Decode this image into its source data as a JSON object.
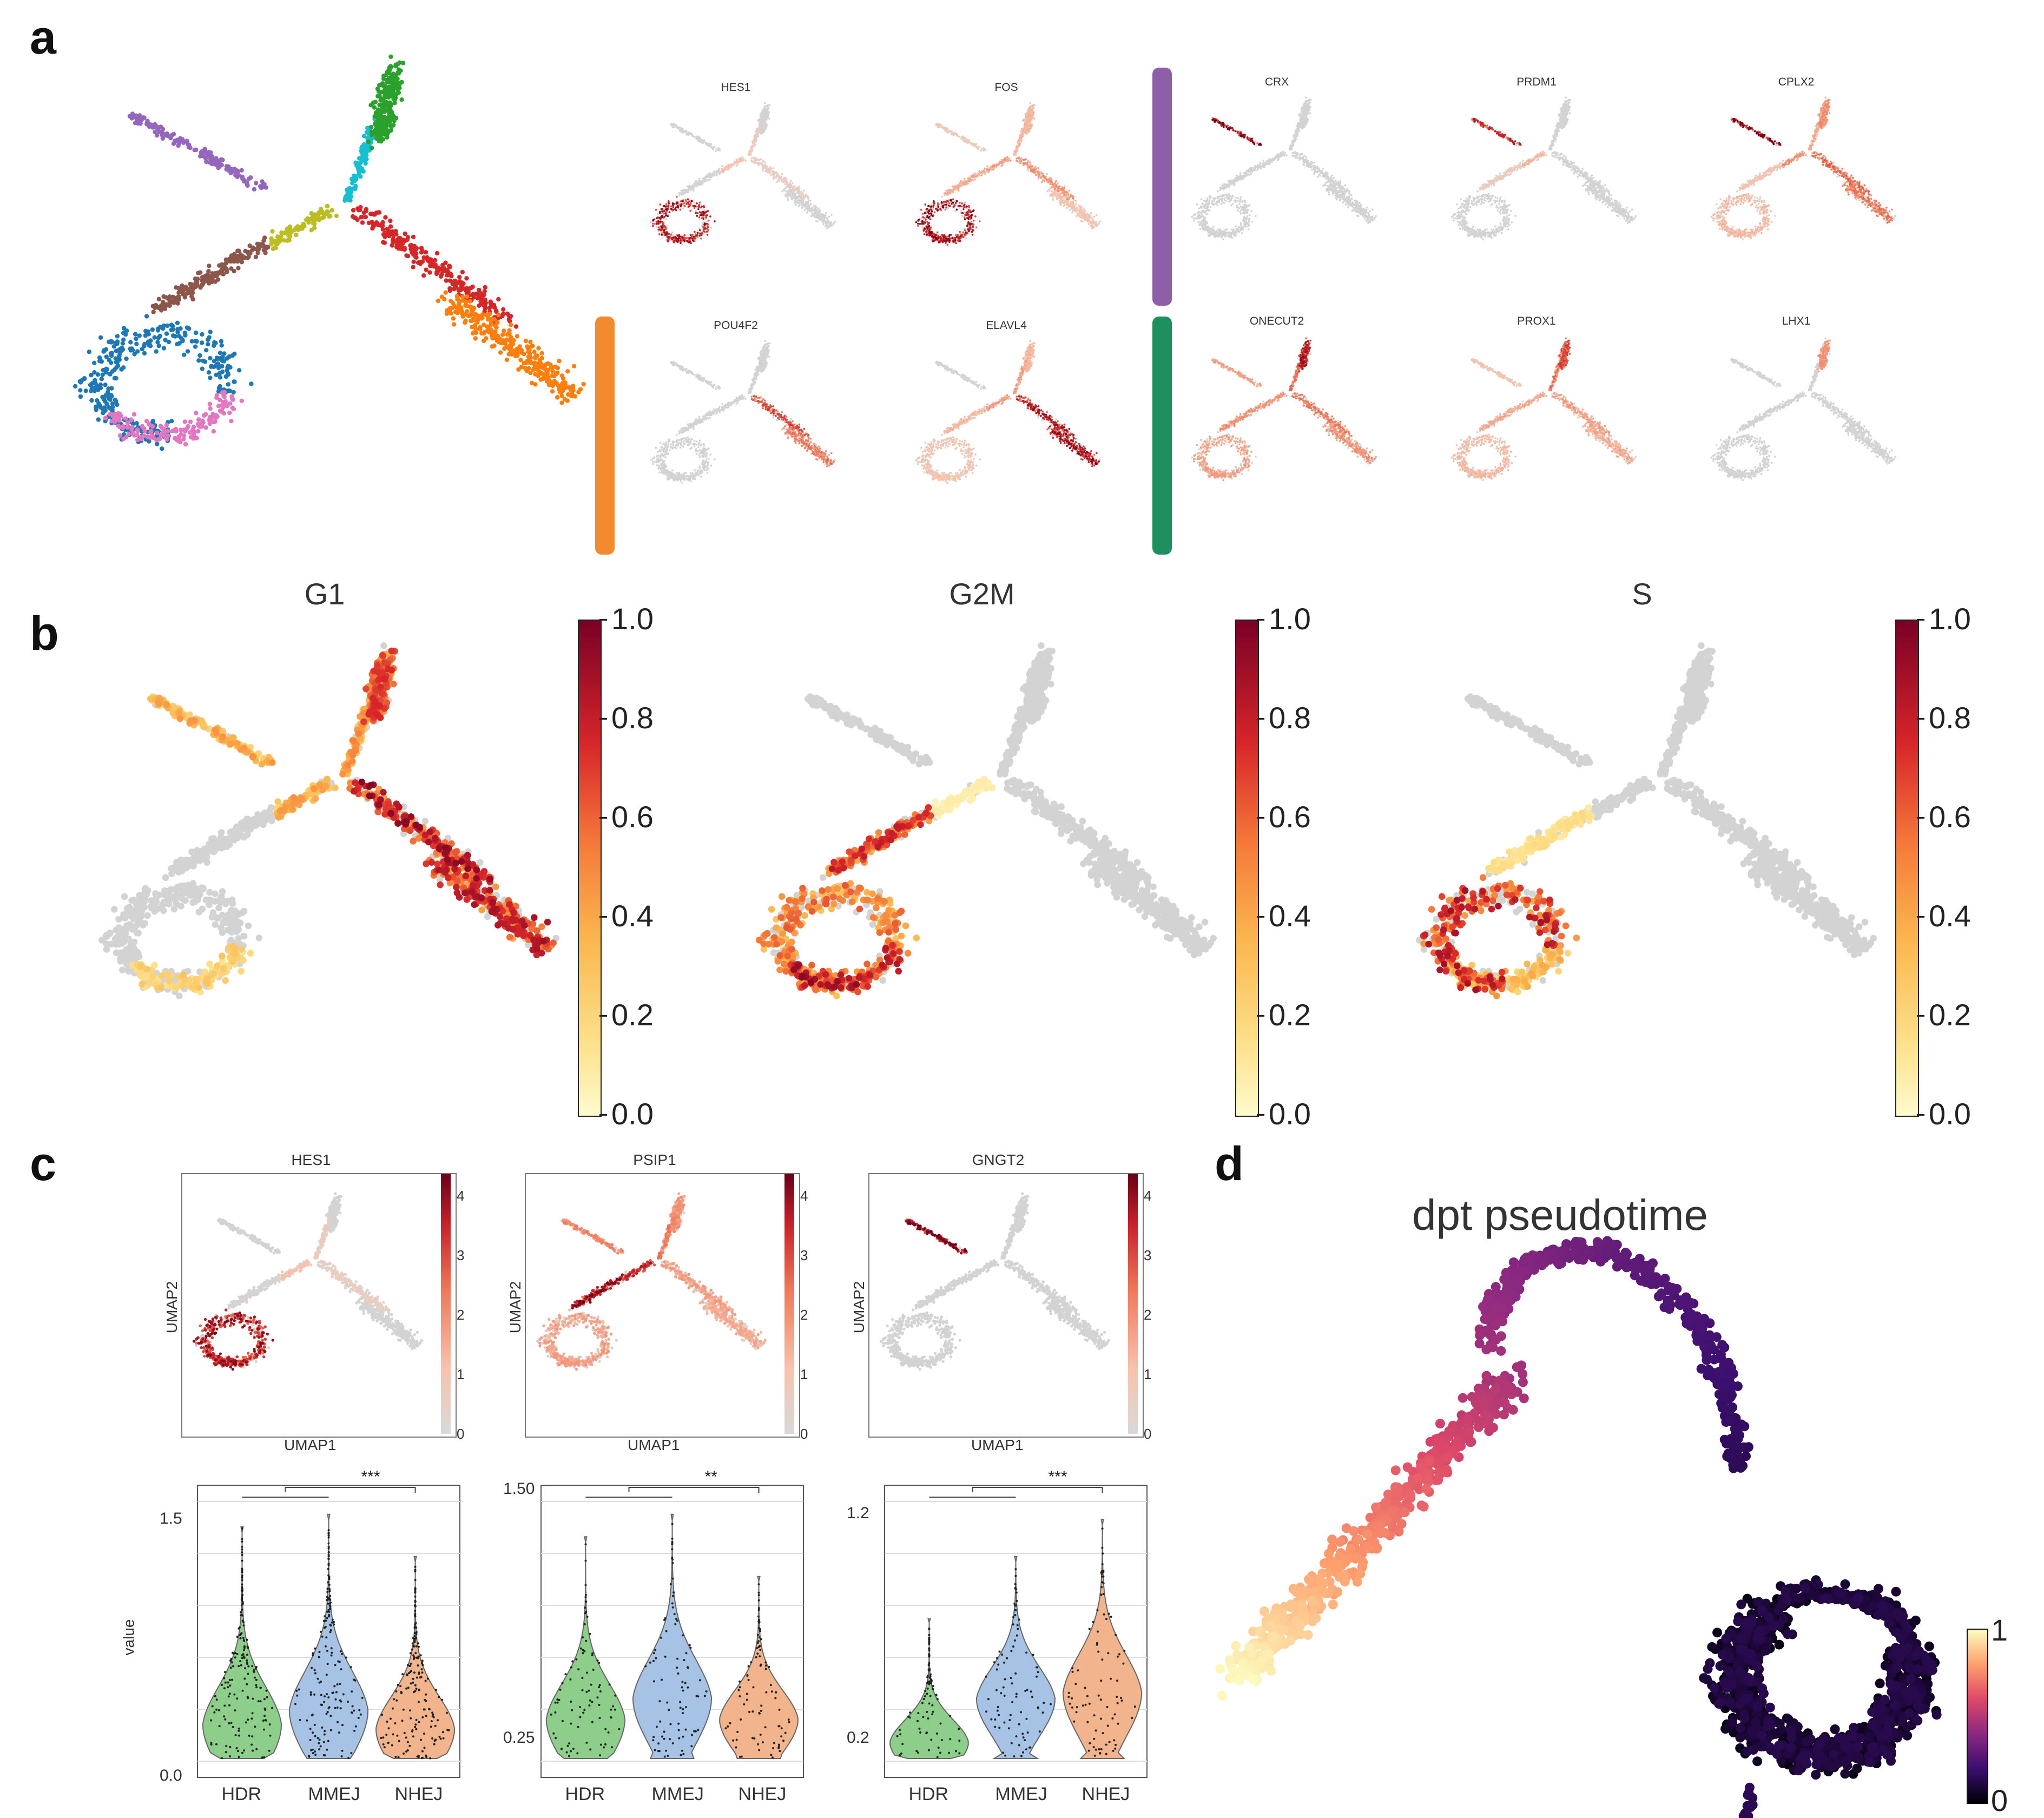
{
  "panels": {
    "a": "a",
    "b": "b",
    "c": "c",
    "d": "d"
  },
  "panel_a": {
    "genes_row1": [
      "HES1",
      "FOS",
      "CRX",
      "PRDM1",
      "CPLX2"
    ],
    "genes_row2": [
      "POU4F2",
      "ELAVL4",
      "ONECUT2",
      "PROX1",
      "LHX1"
    ],
    "cluster_colors": [
      "#1f77b4",
      "#e377c2",
      "#8c564b",
      "#bcbd22",
      "#9467bd",
      "#17becf",
      "#2ca02c",
      "#d62728",
      "#ff7f0e"
    ],
    "bar_colors": {
      "purple": "#8c5fa8",
      "orange": "#f28a30",
      "green": "#1e8f5e"
    }
  },
  "panel_b": {
    "titles": [
      "G1",
      "G2M",
      "S"
    ],
    "colorbar_ticks": [
      "1.0",
      "0.8",
      "0.6",
      "0.4",
      "0.2",
      "0.0"
    ]
  },
  "panel_c": {
    "umap_titles": [
      "HES1",
      "PSIP1",
      "GNGT2"
    ],
    "umap_xlabel": "UMAP1",
    "umap_ylabel": "UMAP2",
    "umap_cbar_ticks": [
      "4",
      "3",
      "2",
      "1",
      "0"
    ],
    "violin_ylabel": "value",
    "categories": [
      "HDR",
      "MMEJ",
      "NHEJ"
    ],
    "violin_colors": [
      "#8dcf8a",
      "#a6c3e6",
      "#f2b48c"
    ],
    "violins": [
      {
        "yticks": [
          "1.5",
          "0.0"
        ],
        "sig": "***"
      },
      {
        "yticks": [
          "1.50",
          "0.25"
        ],
        "sig": "**"
      },
      {
        "yticks": [
          "1.2",
          "0.2"
        ],
        "sig": "***"
      }
    ]
  },
  "panel_d": {
    "title": "dpt pseudotime",
    "cbar_max": "1",
    "cbar_min": "0"
  }
}
